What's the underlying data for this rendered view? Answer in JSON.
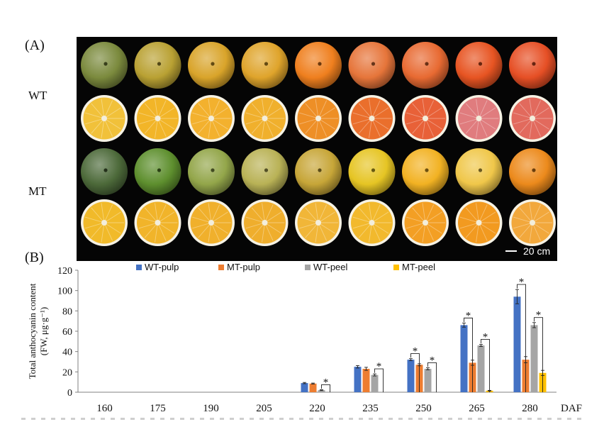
{
  "panel_a": {
    "label": "(A)",
    "row_labels": {
      "wt": "WT",
      "mt": "MT"
    },
    "scale_bar": "20 cm",
    "rows": [
      {
        "name": "wt-whole",
        "kind": "whole",
        "colors": [
          "#7b8a3d",
          "#b9a133",
          "#d9a42a",
          "#dfa42b",
          "#ef7f1e",
          "#e6753a",
          "#e86a32",
          "#e75422",
          "#e64f25"
        ]
      },
      {
        "name": "wt-cut",
        "kind": "cut",
        "colors": [
          "#f1c13a",
          "#f2b528",
          "#f3b12e",
          "#f0b02d",
          "#ee8f26",
          "#ea6f2c",
          "#e86138",
          "#e07c7e",
          "#e26a5d"
        ]
      },
      {
        "name": "mt-whole",
        "kind": "whole",
        "colors": [
          "#4d6a3a",
          "#5e8f2e",
          "#93a64a",
          "#b9b256",
          "#c7a638",
          "#e6c524",
          "#f2b223",
          "#f0c74a",
          "#ec8a1c"
        ]
      },
      {
        "name": "mt-cut",
        "kind": "cut",
        "colors": [
          "#f1ba2a",
          "#f1b42a",
          "#f0b02c",
          "#efae2d",
          "#f1b638",
          "#f2b92d",
          "#f39f24",
          "#f29a20",
          "#f2a83c"
        ]
      }
    ]
  },
  "chart_data": {
    "type": "bar",
    "panel_label": "(B)",
    "ylabel_line1": "Total anthocyanin content",
    "ylabel_line2": "(FW, μg·g⁻¹)",
    "xlabel": "DAF",
    "categories": [
      "160",
      "175",
      "190",
      "205",
      "220",
      "235",
      "250",
      "265",
      "280"
    ],
    "ylim": [
      0,
      120
    ],
    "yticks": [
      0,
      20,
      40,
      60,
      80,
      100,
      120
    ],
    "legend_placement": "top",
    "series": [
      {
        "name": "WT-pulp",
        "color": "#4472c4",
        "values": [
          0,
          0,
          0,
          0,
          9,
          25,
          32,
          66,
          94
        ],
        "errors": [
          0,
          0,
          0,
          0,
          0.6,
          1.2,
          1.0,
          2.0,
          7.0
        ]
      },
      {
        "name": "MT-pulp",
        "color": "#ed7d31",
        "values": [
          0,
          0,
          0,
          0,
          8.5,
          23,
          27,
          29,
          32
        ],
        "errors": [
          0,
          0,
          0,
          0,
          0.5,
          1.5,
          1.0,
          2.5,
          3.0
        ]
      },
      {
        "name": "WT-peel",
        "color": "#a5a5a5",
        "values": [
          0,
          0,
          0,
          0,
          2,
          17,
          23,
          46,
          66
        ],
        "errors": [
          0,
          0,
          0,
          0,
          0.4,
          1.0,
          1.0,
          1.0,
          2.5
        ]
      },
      {
        "name": "MT-peel",
        "color": "#ffc000",
        "values": [
          0,
          0,
          0,
          0,
          0,
          0,
          0,
          1.5,
          19
        ],
        "errors": [
          0,
          0,
          0,
          0,
          0,
          0,
          0,
          0.3,
          2.5
        ]
      }
    ],
    "significance_marker": "*",
    "significance": [
      {
        "category": 4,
        "from": 2,
        "to": 3
      },
      {
        "category": 5,
        "from": 2,
        "to": 3
      },
      {
        "category": 6,
        "from": 0,
        "to": 1
      },
      {
        "category": 6,
        "from": 2,
        "to": 3
      },
      {
        "category": 7,
        "from": 0,
        "to": 1
      },
      {
        "category": 7,
        "from": 2,
        "to": 3
      },
      {
        "category": 8,
        "from": 0,
        "to": 1
      },
      {
        "category": 8,
        "from": 2,
        "to": 3
      }
    ]
  }
}
